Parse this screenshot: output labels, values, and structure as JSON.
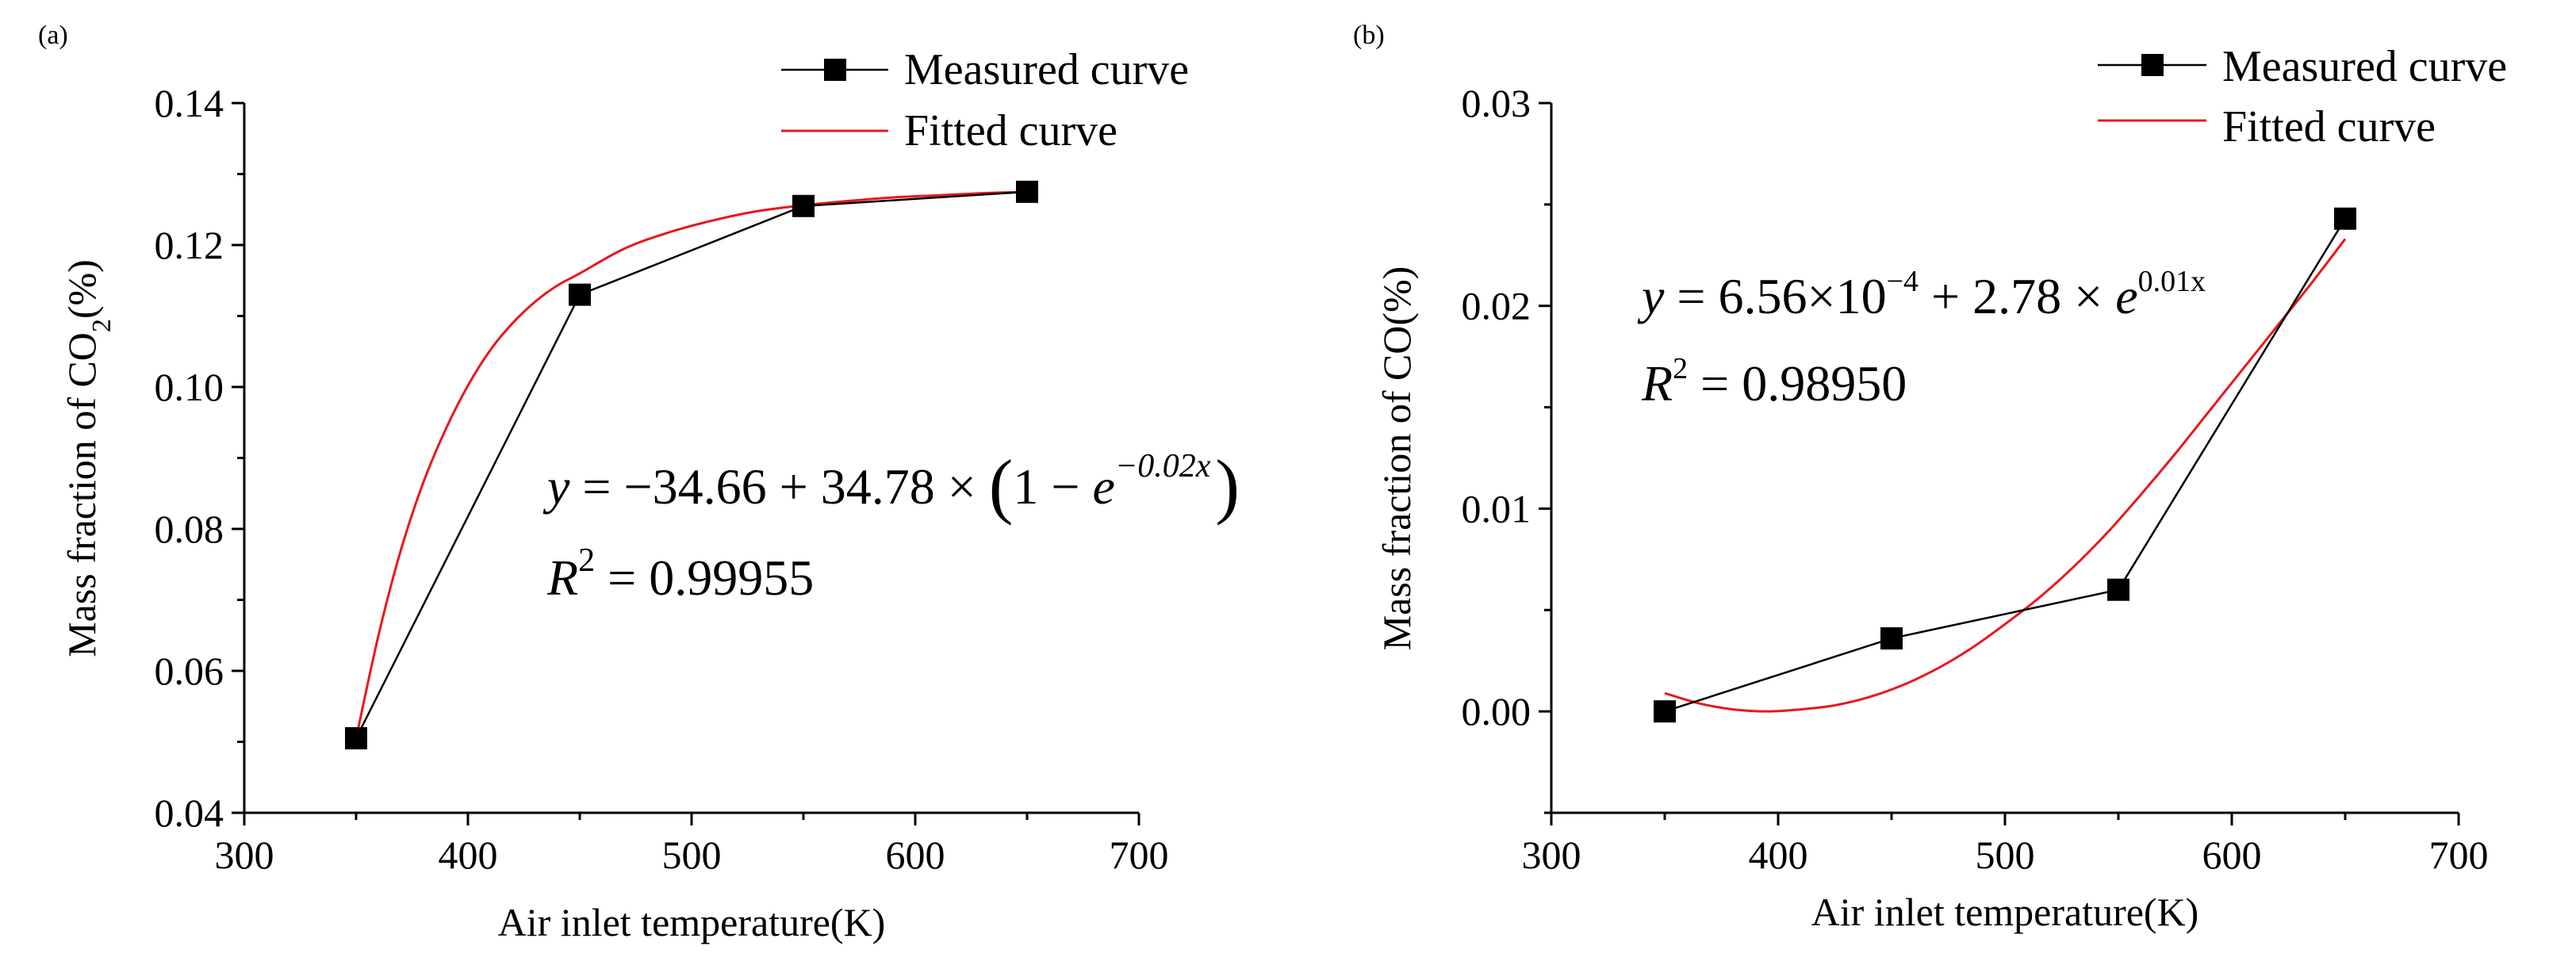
{
  "chart_data": [
    {
      "type": "line",
      "panel_label": "(a)",
      "xlabel": "Air inlet temperature(K)",
      "ylabel": {
        "prefix": "Mass fraction of CO",
        "subscript": "2",
        "suffix": "(%)"
      },
      "xlim": [
        300,
        700
      ],
      "ylim": [
        0.04,
        0.14
      ],
      "xticks": [
        300,
        400,
        500,
        600,
        700
      ],
      "yticks": [
        0.04,
        0.06,
        0.08,
        0.1,
        0.12,
        0.14
      ],
      "xtick_labels": [
        "300",
        "400",
        "500",
        "600",
        "700"
      ],
      "ytick_labels": [
        "0.04",
        "0.06",
        "0.08",
        "0.10",
        "0.12",
        "0.14"
      ],
      "series": [
        {
          "name": "Measured curve",
          "style": "line-marker",
          "color": "#000000",
          "x": [
            350,
            450,
            550,
            650
          ],
          "y": [
            0.0505,
            0.113,
            0.1255,
            0.1275
          ]
        },
        {
          "name": "Fitted curve",
          "style": "line",
          "color": "#e8181c",
          "x": [
            350,
            360,
            370,
            380,
            390,
            400,
            410,
            420,
            430,
            440,
            450,
            470,
            490,
            510,
            530,
            550,
            570,
            590,
            610,
            630,
            650
          ],
          "y": [
            0.0505,
            0.065,
            0.077,
            0.0865,
            0.094,
            0.1002,
            0.1052,
            0.109,
            0.112,
            0.1143,
            0.116,
            0.1195,
            0.1218,
            0.1235,
            0.1248,
            0.1256,
            0.1262,
            0.1267,
            0.127,
            0.1273,
            0.1275
          ]
        }
      ],
      "legend": [
        "Measured curve",
        "Fitted curve"
      ],
      "annotations": {
        "equation": {
          "y": "y",
          "eq": " = −34.66 + 34.78 × ",
          "lparen": "(",
          "one": "1 − ",
          "e": "e",
          "exp": "−0.02x",
          "rparen": ")"
        },
        "r2": {
          "R": "R",
          "sup": "2",
          "eq": " = 0.99955"
        }
      }
    },
    {
      "type": "line",
      "panel_label": "(b)",
      "xlabel": "Air inlet temperature(K)",
      "ylabel": {
        "prefix": "Mass fraction of CO(%)",
        "subscript": "",
        "suffix": ""
      },
      "xlim": [
        300,
        700
      ],
      "ylim": [
        -0.005,
        0.03
      ],
      "xticks": [
        300,
        400,
        500,
        600,
        700
      ],
      "yticks": [
        0.0,
        0.01,
        0.02,
        0.03
      ],
      "xtick_labels": [
        "300",
        "400",
        "500",
        "600",
        "700"
      ],
      "ytick_labels": [
        "0.00",
        "0.01",
        "0.02",
        "0.03"
      ],
      "series": [
        {
          "name": "Measured curve",
          "style": "line-marker",
          "color": "#000000",
          "x": [
            350,
            450,
            550,
            650
          ],
          "y": [
            0.0,
            0.0036,
            0.006,
            0.0243
          ]
        },
        {
          "name": "Fitted curve",
          "style": "line",
          "color": "#e8181c",
          "x": [
            350,
            365,
            380,
            395,
            410,
            425,
            440,
            455,
            470,
            485,
            500,
            515,
            530,
            545,
            560,
            575,
            590,
            605,
            620,
            635,
            650
          ],
          "y": [
            0.0009,
            0.0004,
            0.0001,
            0.0,
            0.0001,
            0.0003,
            0.0007,
            0.0013,
            0.0021,
            0.0031,
            0.0043,
            0.0056,
            0.0071,
            0.0088,
            0.0107,
            0.0127,
            0.0148,
            0.0169,
            0.019,
            0.0211,
            0.0233
          ]
        }
      ],
      "legend": [
        "Measured curve",
        "Fitted curve"
      ],
      "annotations": {
        "equation": {
          "y": "y",
          "eq": " = 6.56×10",
          "exp1": "−4",
          "mid": " + 2.78 × ",
          "e": "e",
          "exp2": "0.01x"
        },
        "r2": {
          "R": "R",
          "sup": "2",
          "eq": " = 0.98950"
        }
      }
    }
  ]
}
